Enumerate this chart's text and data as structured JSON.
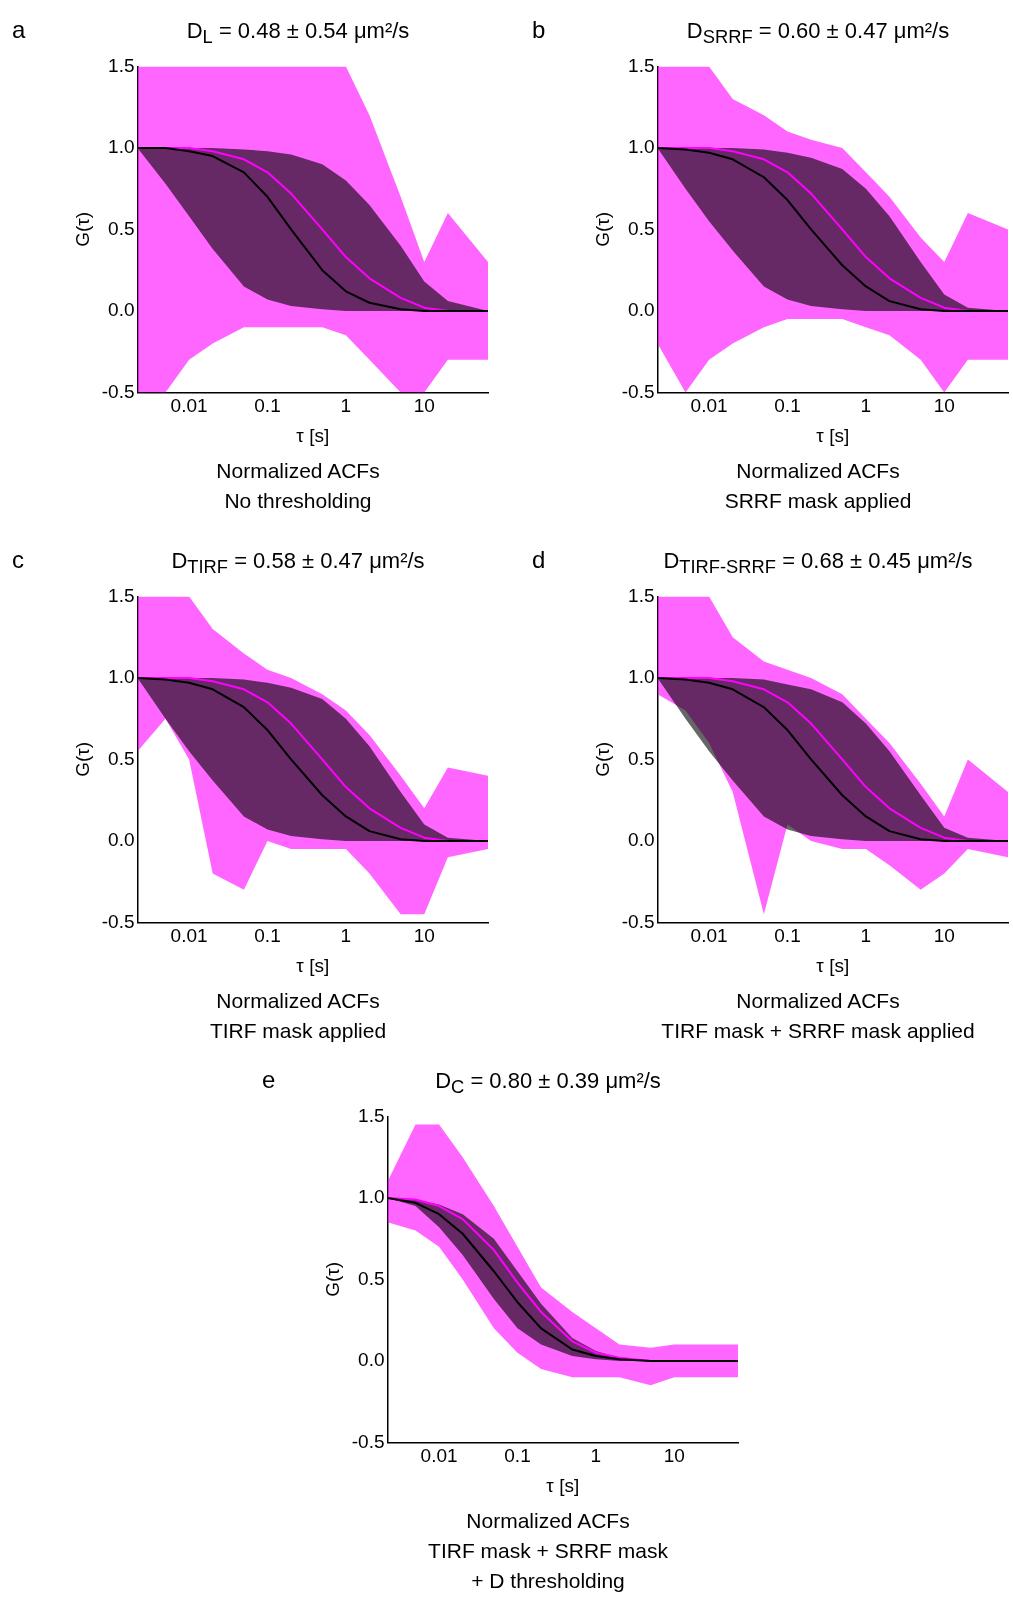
{
  "chart_data": [
    {
      "type": "line",
      "title": "D$_{L}$ = 0.48 ± 0.54 μm²/s",
      "xlabel": "τ [s]",
      "ylabel": "G(τ)",
      "annotations": [
        "a",
        "Normalized ACFs",
        "No thresholding"
      ],
      "log": "x",
      "grid": false,
      "legend": false,
      "marker": "none",
      "line_style": "solid",
      "xlim": [
        0.0022,
        65
      ],
      "xticks": [
        0.01,
        0.1,
        1,
        10
      ],
      "ylim": [
        -0.5,
        1.5
      ],
      "yticks": [
        {
          "value": -0.5,
          "label": "-0.5"
        },
        {
          "value": 0,
          "label": "0.0"
        },
        {
          "value": 0.5,
          "label": "0.5"
        },
        {
          "value": 1,
          "label": "1.0"
        },
        {
          "value": 1.5,
          "label": "1.5"
        }
      ],
      "x": [
        0.0022,
        0.005,
        0.01,
        0.02,
        0.05,
        0.1,
        0.2,
        0.5,
        1,
        2,
        5,
        10,
        20,
        65
      ],
      "series": [
        {
          "color": "#ff00ff",
          "values": [
            1,
            1,
            1,
            0.98,
            0.93,
            0.85,
            0.72,
            0.5,
            0.33,
            0.2,
            0.08,
            0.02,
            0,
            0
          ],
          "lower": [
            -0.5,
            -0.5,
            -0.3,
            -0.2,
            -0.1,
            -0.1,
            -0.1,
            -0.1,
            -0.15,
            -0.3,
            -0.5,
            -0.5,
            -0.3,
            -0.3
          ],
          "upper": [
            1.5,
            1.5,
            1.5,
            1.5,
            1.5,
            1.5,
            1.5,
            1.5,
            1.5,
            1.2,
            0.7,
            0.3,
            0.6,
            0.3
          ]
        },
        {
          "color": "#000000",
          "values": [
            1,
            1,
            0.98,
            0.95,
            0.85,
            0.7,
            0.5,
            0.25,
            0.12,
            0.05,
            0.01,
            0,
            0,
            0
          ],
          "lower": [
            1,
            0.78,
            0.58,
            0.38,
            0.15,
            0.07,
            0.03,
            0.01,
            0,
            0,
            0,
            0,
            0,
            0
          ],
          "upper": [
            1,
            1,
            1,
            1,
            0.99,
            0.98,
            0.96,
            0.9,
            0.8,
            0.65,
            0.4,
            0.18,
            0.06,
            0
          ]
        }
      ]
    },
    {
      "type": "line",
      "title": "D$_{SRRF}$ = 0.60 ± 0.47 μm²/s",
      "xlabel": "τ [s]",
      "ylabel": "G(τ)",
      "annotations": [
        "b",
        "Normalized ACFs",
        "SRRF mask applied"
      ],
      "log": "x",
      "grid": false,
      "legend": false,
      "marker": "none",
      "line_style": "solid",
      "xlim": [
        0.0022,
        65
      ],
      "xticks": [
        0.01,
        0.1,
        1,
        10
      ],
      "ylim": [
        -0.5,
        1.5
      ],
      "yticks": [
        {
          "value": -0.5,
          "label": "-0.5"
        },
        {
          "value": 0,
          "label": "0.0"
        },
        {
          "value": 0.5,
          "label": "0.5"
        },
        {
          "value": 1,
          "label": "1.0"
        },
        {
          "value": 1.5,
          "label": "1.5"
        }
      ],
      "x": [
        0.0022,
        0.005,
        0.01,
        0.02,
        0.05,
        0.1,
        0.2,
        0.5,
        1,
        2,
        5,
        10,
        20,
        65
      ],
      "series": [
        {
          "color": "#ff00ff",
          "values": [
            1,
            1,
            1,
            0.98,
            0.93,
            0.85,
            0.72,
            0.5,
            0.33,
            0.2,
            0.08,
            0.02,
            0,
            0
          ],
          "lower": [
            -0.2,
            -0.5,
            -0.3,
            -0.2,
            -0.1,
            -0.05,
            -0.05,
            -0.05,
            -0.1,
            -0.15,
            -0.3,
            -0.5,
            -0.3,
            -0.3
          ],
          "upper": [
            1.5,
            1.5,
            1.5,
            1.3,
            1.2,
            1.1,
            1.05,
            1,
            0.85,
            0.7,
            0.45,
            0.3,
            0.6,
            0.5
          ]
        },
        {
          "color": "#000000",
          "values": [
            1,
            0.99,
            0.97,
            0.93,
            0.82,
            0.68,
            0.5,
            0.28,
            0.15,
            0.06,
            0.01,
            0,
            0,
            0
          ],
          "lower": [
            1,
            0.75,
            0.55,
            0.37,
            0.15,
            0.07,
            0.03,
            0.01,
            0,
            0,
            0,
            0,
            0,
            0
          ],
          "upper": [
            1,
            1,
            1,
            1,
            0.99,
            0.97,
            0.94,
            0.87,
            0.75,
            0.58,
            0.3,
            0.1,
            0.02,
            0
          ]
        }
      ]
    },
    {
      "type": "line",
      "title": "D$_{TIRF}$ = 0.58 ± 0.47 μm²/s",
      "xlabel": "τ [s]",
      "ylabel": "G(τ)",
      "annotations": [
        "c",
        "Normalized ACFs",
        "TIRF mask applied"
      ],
      "log": "x",
      "grid": false,
      "legend": false,
      "marker": "none",
      "line_style": "solid",
      "xlim": [
        0.0022,
        65
      ],
      "xticks": [
        0.01,
        0.1,
        1,
        10
      ],
      "ylim": [
        -0.5,
        1.5
      ],
      "yticks": [
        {
          "value": -0.5,
          "label": "-0.5"
        },
        {
          "value": 0,
          "label": "0.0"
        },
        {
          "value": 0.5,
          "label": "0.5"
        },
        {
          "value": 1,
          "label": "1.0"
        },
        {
          "value": 1.5,
          "label": "1.5"
        }
      ],
      "x": [
        0.0022,
        0.005,
        0.01,
        0.02,
        0.05,
        0.1,
        0.2,
        0.5,
        1,
        2,
        5,
        10,
        20,
        65
      ],
      "series": [
        {
          "color": "#ff00ff",
          "values": [
            1,
            1,
            1,
            0.98,
            0.93,
            0.85,
            0.72,
            0.5,
            0.33,
            0.2,
            0.08,
            0.02,
            0,
            0
          ],
          "lower": [
            0.55,
            0.75,
            0.5,
            -0.2,
            -0.3,
            0,
            -0.05,
            -0.05,
            -0.05,
            -0.2,
            -0.45,
            -0.45,
            -0.1,
            -0.05
          ],
          "upper": [
            1.5,
            1.5,
            1.5,
            1.3,
            1.15,
            1.05,
            1,
            0.9,
            0.8,
            0.65,
            0.4,
            0.2,
            0.45,
            0.4
          ]
        },
        {
          "color": "#000000",
          "values": [
            1,
            0.99,
            0.97,
            0.93,
            0.82,
            0.68,
            0.5,
            0.28,
            0.15,
            0.06,
            0.01,
            0,
            0,
            0
          ],
          "lower": [
            1,
            0.75,
            0.55,
            0.37,
            0.15,
            0.07,
            0.03,
            0.01,
            0,
            0,
            0,
            0,
            0,
            0
          ],
          "upper": [
            1,
            1,
            1,
            1,
            0.99,
            0.97,
            0.94,
            0.87,
            0.75,
            0.58,
            0.3,
            0.1,
            0.02,
            0
          ]
        }
      ]
    },
    {
      "type": "line",
      "title": "D$_{TIRF-SRRF}$ = 0.68 ± 0.45 μm²/s",
      "xlabel": "τ [s]",
      "ylabel": "G(τ)",
      "annotations": [
        "d",
        "Normalized ACFs",
        "TIRF mask + SRRF mask applied"
      ],
      "log": "x",
      "grid": false,
      "legend": false,
      "marker": "none",
      "line_style": "solid",
      "xlim": [
        0.0022,
        65
      ],
      "xticks": [
        0.01,
        0.1,
        1,
        10
      ],
      "ylim": [
        -0.5,
        1.5
      ],
      "yticks": [
        {
          "value": -0.5,
          "label": "-0.5"
        },
        {
          "value": 0,
          "label": "0.0"
        },
        {
          "value": 0.5,
          "label": "0.5"
        },
        {
          "value": 1,
          "label": "1.0"
        },
        {
          "value": 1.5,
          "label": "1.5"
        }
      ],
      "x": [
        0.0022,
        0.005,
        0.01,
        0.02,
        0.05,
        0.1,
        0.2,
        0.5,
        1,
        2,
        5,
        10,
        20,
        65
      ],
      "series": [
        {
          "color": "#ff00ff",
          "values": [
            1,
            1,
            1,
            0.98,
            0.93,
            0.85,
            0.72,
            0.5,
            0.33,
            0.2,
            0.08,
            0.02,
            0,
            0
          ],
          "lower": [
            0.9,
            0.8,
            0.6,
            0.3,
            -0.45,
            0.1,
            0,
            -0.05,
            -0.05,
            -0.15,
            -0.3,
            -0.2,
            -0.05,
            -0.1
          ],
          "upper": [
            1.5,
            1.5,
            1.5,
            1.25,
            1.1,
            1.05,
            1,
            0.9,
            0.75,
            0.6,
            0.35,
            0.15,
            0.5,
            0.3
          ]
        },
        {
          "color": "#000000",
          "values": [
            1,
            0.99,
            0.97,
            0.93,
            0.82,
            0.68,
            0.5,
            0.28,
            0.15,
            0.06,
            0.01,
            0,
            0,
            0
          ],
          "lower": [
            1,
            0.75,
            0.55,
            0.37,
            0.15,
            0.07,
            0.03,
            0.01,
            0,
            0,
            0,
            0,
            0,
            0
          ],
          "upper": [
            1,
            1,
            1,
            1,
            0.99,
            0.96,
            0.93,
            0.85,
            0.72,
            0.55,
            0.28,
            0.08,
            0.02,
            0
          ]
        }
      ]
    },
    {
      "type": "line",
      "title": "D$_{C}$ = 0.80 ± 0.39 μm²/s",
      "xlabel": "τ [s]",
      "ylabel": "G(τ)",
      "annotations": [
        "e",
        "Normalized ACFs",
        "TIRF mask + SRRF mask",
        "+ D thresholding"
      ],
      "log": "x",
      "grid": false,
      "legend": false,
      "marker": "none",
      "line_style": "solid",
      "xlim": [
        0.0022,
        65
      ],
      "xticks": [
        0.01,
        0.1,
        1,
        10
      ],
      "ylim": [
        -0.5,
        1.5
      ],
      "yticks": [
        {
          "value": -0.5,
          "label": "-0.5"
        },
        {
          "value": 0,
          "label": "0.0"
        },
        {
          "value": 0.5,
          "label": "0.5"
        },
        {
          "value": 1,
          "label": "1.0"
        },
        {
          "value": 1.5,
          "label": "1.5"
        }
      ],
      "x": [
        0.0022,
        0.005,
        0.01,
        0.02,
        0.05,
        0.1,
        0.2,
        0.5,
        1,
        2,
        5,
        10,
        20,
        65
      ],
      "series": [
        {
          "color": "#ff00ff",
          "values": [
            1,
            0.99,
            0.95,
            0.87,
            0.68,
            0.48,
            0.3,
            0.12,
            0.05,
            0.02,
            0,
            0,
            0,
            0
          ],
          "lower": [
            0.85,
            0.8,
            0.7,
            0.5,
            0.2,
            0.05,
            -0.05,
            -0.1,
            -0.1,
            -0.1,
            -0.15,
            -0.1,
            -0.1,
            -0.1
          ],
          "upper": [
            1.1,
            1.45,
            1.45,
            1.25,
            0.95,
            0.7,
            0.45,
            0.3,
            0.2,
            0.1,
            0.08,
            0.1,
            0.1,
            0.1
          ]
        },
        {
          "color": "#000000",
          "values": [
            1,
            0.97,
            0.9,
            0.78,
            0.55,
            0.36,
            0.2,
            0.07,
            0.03,
            0.01,
            0,
            0,
            0,
            0
          ],
          "lower": [
            1,
            0.95,
            0.82,
            0.65,
            0.38,
            0.2,
            0.1,
            0.03,
            0.01,
            0,
            0,
            0,
            0,
            0
          ],
          "upper": [
            1,
            0.99,
            0.96,
            0.9,
            0.75,
            0.55,
            0.35,
            0.14,
            0.06,
            0.02,
            0,
            0,
            0,
            0
          ]
        }
      ]
    }
  ]
}
